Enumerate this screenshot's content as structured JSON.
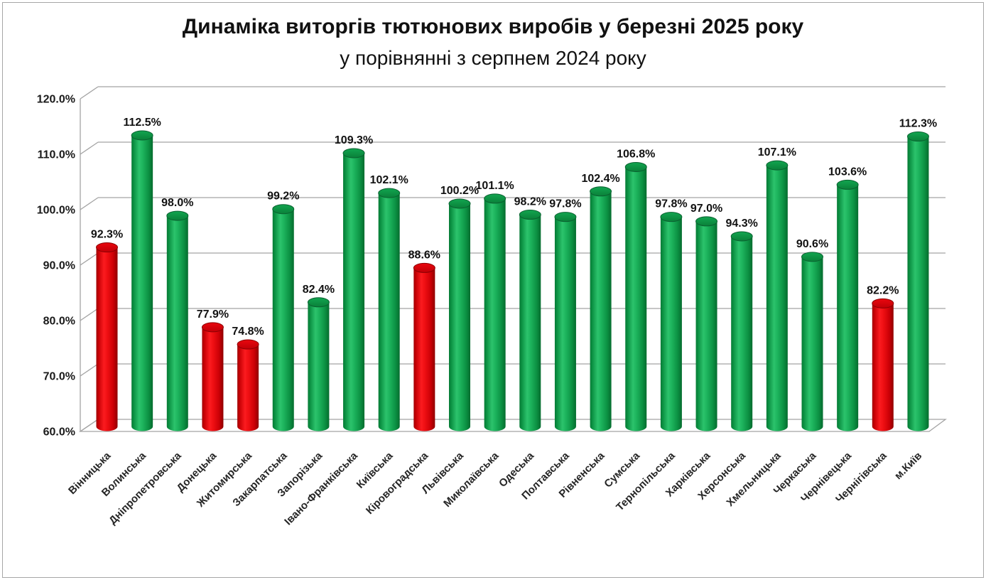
{
  "page": {
    "background": "#ffffff",
    "border_color": "#a6a6a6"
  },
  "chart_data": {
    "type": "bar",
    "style": "3d-cylinder",
    "title": "Динаміка виторгів тютюнових виробів у березні 2025 року",
    "subtitle": "у порівнянні з серпнем 2024 року",
    "xlabel": "",
    "ylabel": "",
    "ylim": [
      60,
      120
    ],
    "ytick_step": 10,
    "ytick_labels": [
      "120.0%",
      "110.0%",
      "100.0%",
      "90.0%",
      "80.0%",
      "70.0%",
      "60.0%"
    ],
    "grid": true,
    "legend": "none",
    "categories": [
      "Вінницька",
      "Волинська",
      "Дніпропетровська",
      "Донецька",
      "Житомирська",
      "Закарпатська",
      "Запорізька",
      "Івано-Франківська",
      "Київська",
      "Кіровоградська",
      "Львівська",
      "Миколаївська",
      "Одеська",
      "Полтавська",
      "Рівненська",
      "Сумська",
      "Тернопільська",
      "Харківська",
      "Херсонська",
      "Хмельницька",
      "Черкаська",
      "Чернівецька",
      "Чернігівська",
      "м.Київ"
    ],
    "values": [
      92.3,
      112.5,
      98.0,
      77.9,
      74.8,
      99.2,
      82.4,
      109.3,
      102.1,
      88.6,
      100.2,
      101.1,
      98.2,
      97.8,
      102.4,
      106.8,
      97.8,
      97.0,
      94.3,
      107.1,
      90.6,
      103.6,
      82.2,
      112.3
    ],
    "value_labels": [
      "92.3%",
      "112.5%",
      "98.0%",
      "77.9%",
      "74.8%",
      "99.2%",
      "82.4%",
      "109.3%",
      "102.1%",
      "88.6%",
      "100.2%",
      "101.1%",
      "98.2%",
      "97.8%",
      "102.4%",
      "106.8%",
      "97.8%",
      "97.0%",
      "94.3%",
      "107.1%",
      "90.6%",
      "103.6%",
      "82.2%",
      "112.3%"
    ],
    "bar_colors": [
      "red",
      "green",
      "green",
      "red",
      "red",
      "green",
      "green",
      "green",
      "green",
      "red",
      "green",
      "green",
      "green",
      "green",
      "green",
      "green",
      "green",
      "green",
      "green",
      "green",
      "green",
      "green",
      "red",
      "green"
    ],
    "palette": {
      "green": "#0f9d48",
      "red": "#e0000b",
      "gridline": "#a3a3a3",
      "label_text": "#111111"
    }
  }
}
